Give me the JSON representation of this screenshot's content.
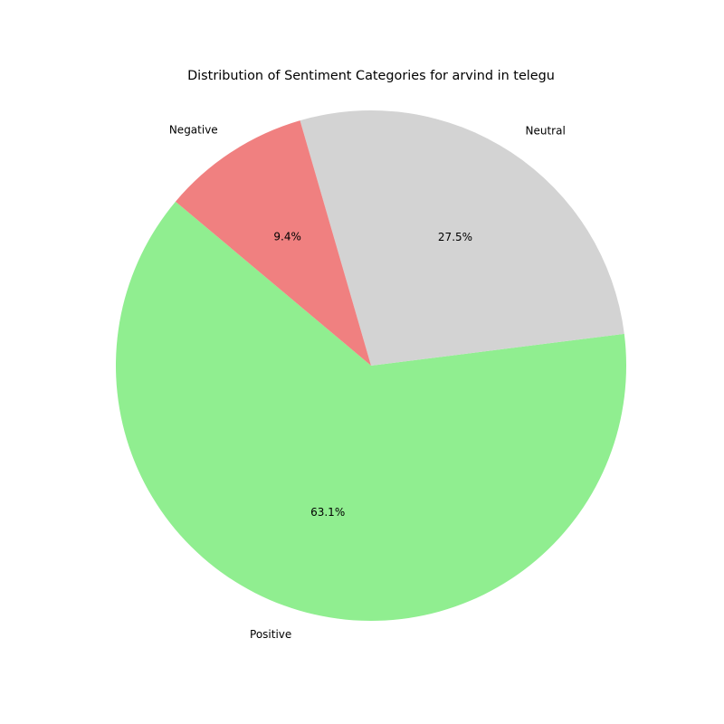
{
  "chart_data": {
    "type": "pie",
    "title": "Distribution of Sentiment Categories for arvind in telegu",
    "start_angle_deg": 140,
    "direction": "counterclockwise",
    "slices": [
      {
        "label": "Positive",
        "value": 63.1,
        "pct_label": "63.1%",
        "color": "#90ee90"
      },
      {
        "label": "Neutral",
        "value": 27.5,
        "pct_label": "27.5%",
        "color": "#d3d3d3"
      },
      {
        "label": "Negative",
        "value": 9.4,
        "pct_label": "9.4%",
        "color": "#f08080"
      }
    ]
  }
}
